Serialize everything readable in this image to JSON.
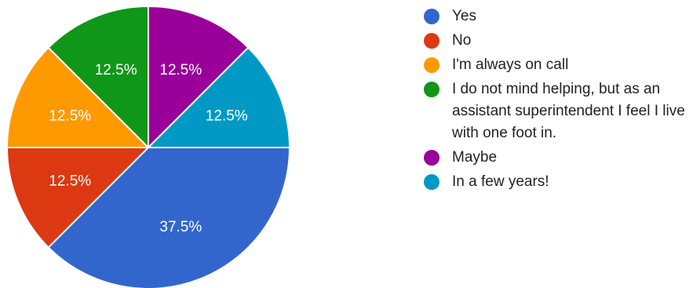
{
  "chart_data": {
    "type": "pie",
    "slices": [
      {
        "label": "Yes",
        "value": 37.5,
        "display": "37.5%",
        "color": "#3366cc"
      },
      {
        "label": "No",
        "value": 12.5,
        "display": "12.5%",
        "color": "#dc3912"
      },
      {
        "label": "I'm always on call",
        "value": 12.5,
        "display": "12.5%",
        "color": "#ff9900"
      },
      {
        "label": "I do not mind helping, but as an assistant superintendent I feel I live with one foot in.",
        "value": 12.5,
        "display": "12.5%",
        "color": "#109618"
      },
      {
        "label": "Maybe",
        "value": 12.5,
        "display": "12.5%",
        "color": "#990099"
      },
      {
        "label": "In a few years!",
        "value": 12.5,
        "display": "12.5%",
        "color": "#0099c6"
      }
    ],
    "legend_position": "right"
  }
}
